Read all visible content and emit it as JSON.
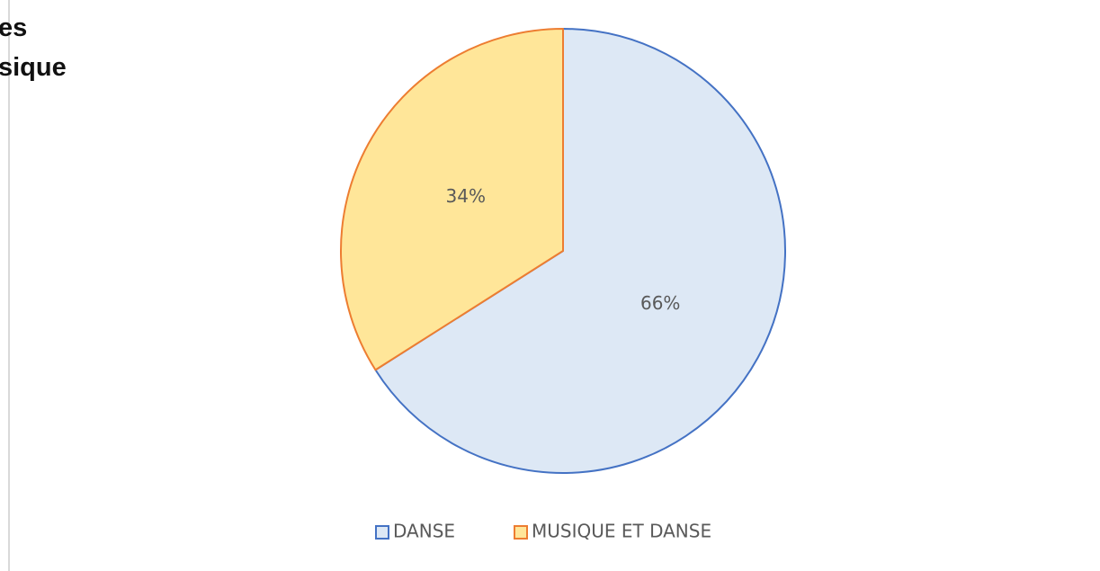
{
  "header_text": [
    "es",
    "sique"
  ],
  "chart_data": {
    "type": "pie",
    "categories": [
      "DANSE",
      "MUSIQUE ET DANSE"
    ],
    "values": [
      66,
      34
    ],
    "value_labels": [
      "66%",
      "34%"
    ],
    "colors": [
      "#dde8f5",
      "#ffe699"
    ],
    "edge_colors": [
      "#4472c4",
      "#ed7d31"
    ],
    "legend": "bottom"
  }
}
